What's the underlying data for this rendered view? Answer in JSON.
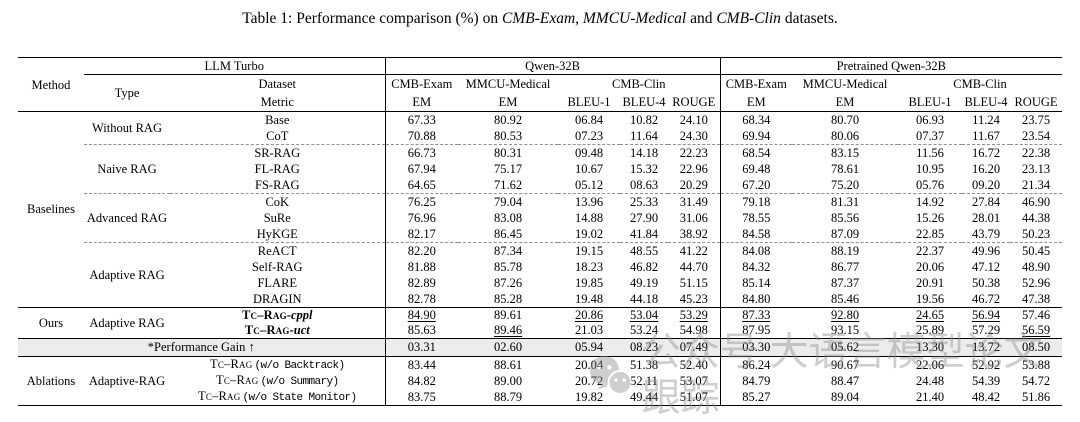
{
  "title_parts": [
    {
      "text": "Table 1: Performance comparison (%) on ",
      "italic": false
    },
    {
      "text": "CMB-Exam",
      "italic": true
    },
    {
      "text": ", ",
      "italic": false
    },
    {
      "text": "MMCU-Medical",
      "italic": true
    },
    {
      "text": " and ",
      "italic": false
    },
    {
      "text": "CMB-Clin",
      "italic": true
    },
    {
      "text": " datasets.",
      "italic": false
    }
  ],
  "header": {
    "method": "Method",
    "llm_turbo": "LLM Turbo",
    "type": "Type",
    "dataset": "Dataset",
    "metric": "Metric",
    "groups": [
      {
        "label": "Qwen-32B",
        "datasets": [
          "CMB-Exam",
          "MMCU-Medical",
          "CMB-Clin"
        ],
        "metrics": [
          "EM",
          "EM",
          "BLEU-1",
          "BLEU-4",
          "ROUGE"
        ]
      },
      {
        "label": "Pretrained Qwen-32B",
        "datasets": [
          "CMB-Exam",
          "MMCU-Medical",
          "CMB-Clin"
        ],
        "metrics": [
          "EM",
          "EM",
          "BLEU-1",
          "BLEU-4",
          "ROUGE"
        ]
      }
    ]
  },
  "sections": [
    {
      "method": "Baselines",
      "groups": [
        {
          "type": "Without RAG",
          "rows": [
            {
              "name": "Base",
              "values": [
                "67.33",
                "80.92",
                "06.84",
                "10.82",
                "24.10",
                "68.34",
                "80.70",
                "06.93",
                "11.24",
                "23.75"
              ]
            },
            {
              "name": "CoT",
              "values": [
                "70.88",
                "80.53",
                "07.23",
                "11.64",
                "24.30",
                "69.94",
                "80.06",
                "07.37",
                "11.67",
                "23.54"
              ]
            }
          ]
        },
        {
          "type": "Naive RAG",
          "rows": [
            {
              "name": "SR-RAG",
              "values": [
                "66.73",
                "80.31",
                "09.48",
                "14.18",
                "22.23",
                "68.54",
                "83.15",
                "11.56",
                "16.72",
                "22.38"
              ]
            },
            {
              "name": "FL-RAG",
              "values": [
                "67.94",
                "75.17",
                "10.67",
                "15.32",
                "22.96",
                "69.48",
                "78.61",
                "10.95",
                "16.20",
                "23.13"
              ]
            },
            {
              "name": "FS-RAG",
              "values": [
                "64.65",
                "71.62",
                "05.12",
                "08.63",
                "20.29",
                "67.20",
                "75.20",
                "05.76",
                "09.20",
                "21.34"
              ]
            }
          ]
        },
        {
          "type": "Advanced RAG",
          "rows": [
            {
              "name": "CoK",
              "values": [
                "76.25",
                "79.04",
                "13.96",
                "25.33",
                "31.49",
                "79.18",
                "81.31",
                "14.92",
                "27.84",
                "46.90"
              ]
            },
            {
              "name": "SuRe",
              "values": [
                "76.96",
                "83.08",
                "14.88",
                "27.90",
                "31.06",
                "78.55",
                "85.56",
                "15.26",
                "28.01",
                "44.38"
              ]
            },
            {
              "name": "HyKGE",
              "values": [
                "82.17",
                "86.45",
                "19.02",
                "41.84",
                "38.92",
                "84.58",
                "87.09",
                "22.85",
                "43.79",
                "50.23"
              ]
            }
          ]
        },
        {
          "type": "Adaptive RAG",
          "rows": [
            {
              "name": "ReACT",
              "values": [
                "82.20",
                "87.34",
                "19.15",
                "48.55",
                "41.22",
                "84.08",
                "88.19",
                "22.37",
                "49.96",
                "50.45"
              ]
            },
            {
              "name": "Self-RAG",
              "values": [
                "81.88",
                "85.78",
                "18.23",
                "46.82",
                "44.70",
                "84.32",
                "86.77",
                "20.06",
                "47.12",
                "48.90"
              ]
            },
            {
              "name": "FLARE",
              "values": [
                "82.89",
                "87.26",
                "19.85",
                "49.19",
                "51.15",
                "85.14",
                "87.37",
                "20.91",
                "50.38",
                "52.96"
              ]
            },
            {
              "name": "DRAGIN",
              "values": [
                "82.78",
                "85.28",
                "19.48",
                "44.18",
                "45.23",
                "84.80",
                "85.46",
                "19.56",
                "46.72",
                "47.38"
              ]
            }
          ]
        }
      ]
    },
    {
      "method": "Ours",
      "groups": [
        {
          "type": "Adaptive RAG",
          "rows": [
            {
              "name_sc": "Tc–Rag",
              "name_suffix": "-cppl",
              "name_bold": true,
              "values": [
                "84.90",
                "89.61",
                "20.86",
                "53.04",
                "53.29",
                "87.33",
                "92.80",
                "24.65",
                "56.94",
                "57.46"
              ],
              "styles": [
                "u",
                "b",
                "u",
                "u",
                "u",
                "u",
                "u",
                "u",
                "u",
                "b"
              ]
            },
            {
              "name_sc": "Tc–Rag",
              "name_suffix": "-uct",
              "name_bold": true,
              "values": [
                "85.63",
                "89.46",
                "21.03",
                "53.24",
                "54.98",
                "87.95",
                "93.15",
                "25.89",
                "57.29",
                "56.59"
              ],
              "styles": [
                "b",
                "u",
                "b",
                "b",
                "b",
                "b",
                "b",
                "b",
                "b",
                "u"
              ]
            }
          ]
        }
      ]
    },
    {
      "method": "Ablations",
      "groups": [
        {
          "type": "Adaptive-RAG",
          "rows": [
            {
              "name_sc": "Tc–Rag",
              "name_mono": "(w/o Backtrack)",
              "values": [
                "83.44",
                "88.61",
                "20.04",
                "51.38",
                "52.40",
                "86.24",
                "90.67",
                "22.06",
                "52.92",
                "53.88"
              ]
            },
            {
              "name_sc": "Tc–Rag",
              "name_mono": "(w/o Summary)",
              "values": [
                "84.82",
                "89.00",
                "20.72",
                "52.11",
                "53.07",
                "84.79",
                "88.47",
                "24.48",
                "54.39",
                "54.72"
              ]
            },
            {
              "name_sc": "Tc–Rag",
              "name_mono": "(w/o State Monitor)",
              "values": [
                "83.75",
                "88.79",
                "19.82",
                "49.44",
                "51.07",
                "85.27",
                "89.04",
                "21.40",
                "48.42",
                "51.86"
              ]
            }
          ]
        }
      ]
    }
  ],
  "gain": {
    "label": "*Performance Gain ↑",
    "values": [
      "03.31",
      "02.60",
      "05.94",
      "08.23",
      "07.49",
      "03.30",
      "05.62",
      "13.30",
      "13.72",
      "08.50"
    ]
  },
  "watermark": {
    "icon": "wechat-icon",
    "text": "公众号 大语言模型论文跟踪"
  }
}
